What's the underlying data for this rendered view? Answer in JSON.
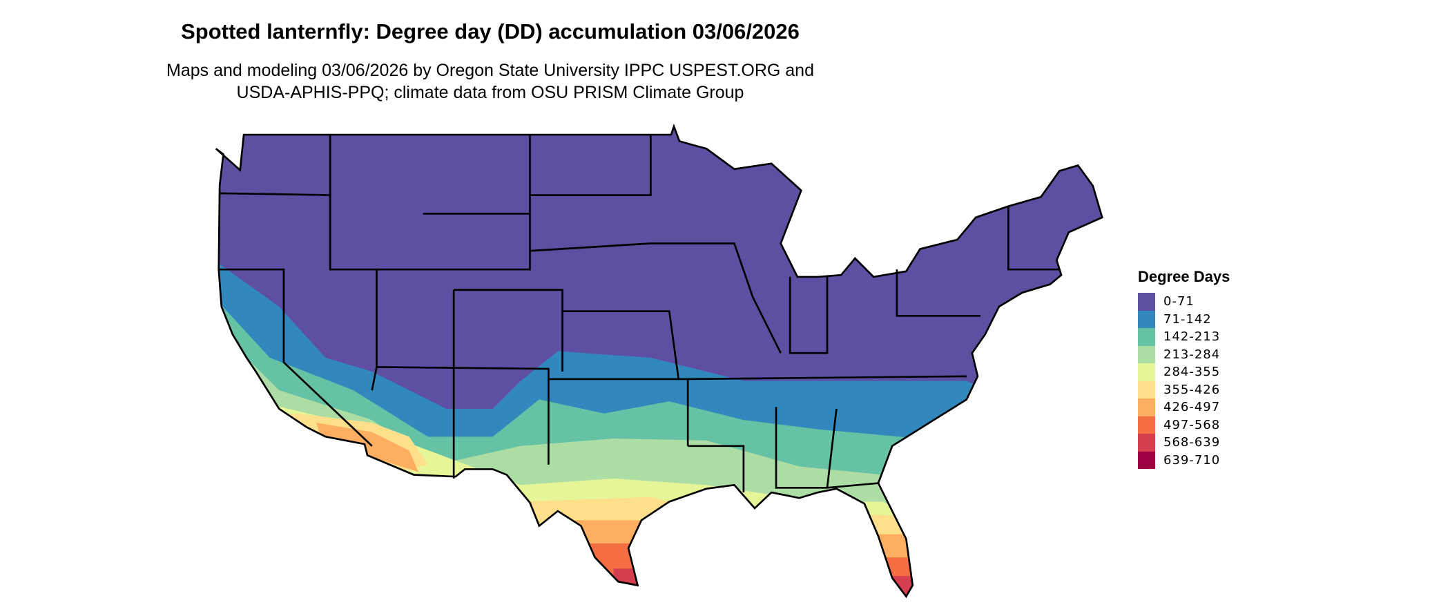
{
  "title": "Spotted lanternfly: Degree day (DD) accumulation 03/06/2026",
  "subtitle_line1": "Maps and modeling 03/06/2026 by Oregon State University IPPC USPEST.ORG and",
  "subtitle_line2": "USDA-APHIS-PPQ; climate data from OSU PRISM Climate Group",
  "legend": {
    "title": "Degree Days",
    "items": [
      {
        "label": "0-71",
        "color": "#5E4FA2"
      },
      {
        "label": "71-142",
        "color": "#3288BD"
      },
      {
        "label": "142-213",
        "color": "#66C2A5"
      },
      {
        "label": "213-284",
        "color": "#ABDDA4"
      },
      {
        "label": "284-355",
        "color": "#E6F598"
      },
      {
        "label": "355-426",
        "color": "#FEE08B"
      },
      {
        "label": "426-497",
        "color": "#FDAE61"
      },
      {
        "label": "497-568",
        "color": "#F46D43"
      },
      {
        "label": "568-639",
        "color": "#D53E4F"
      },
      {
        "label": "639-710",
        "color": "#9E0142"
      }
    ]
  },
  "map": {
    "region": "Contiguous United States",
    "border_color": "#000000"
  }
}
